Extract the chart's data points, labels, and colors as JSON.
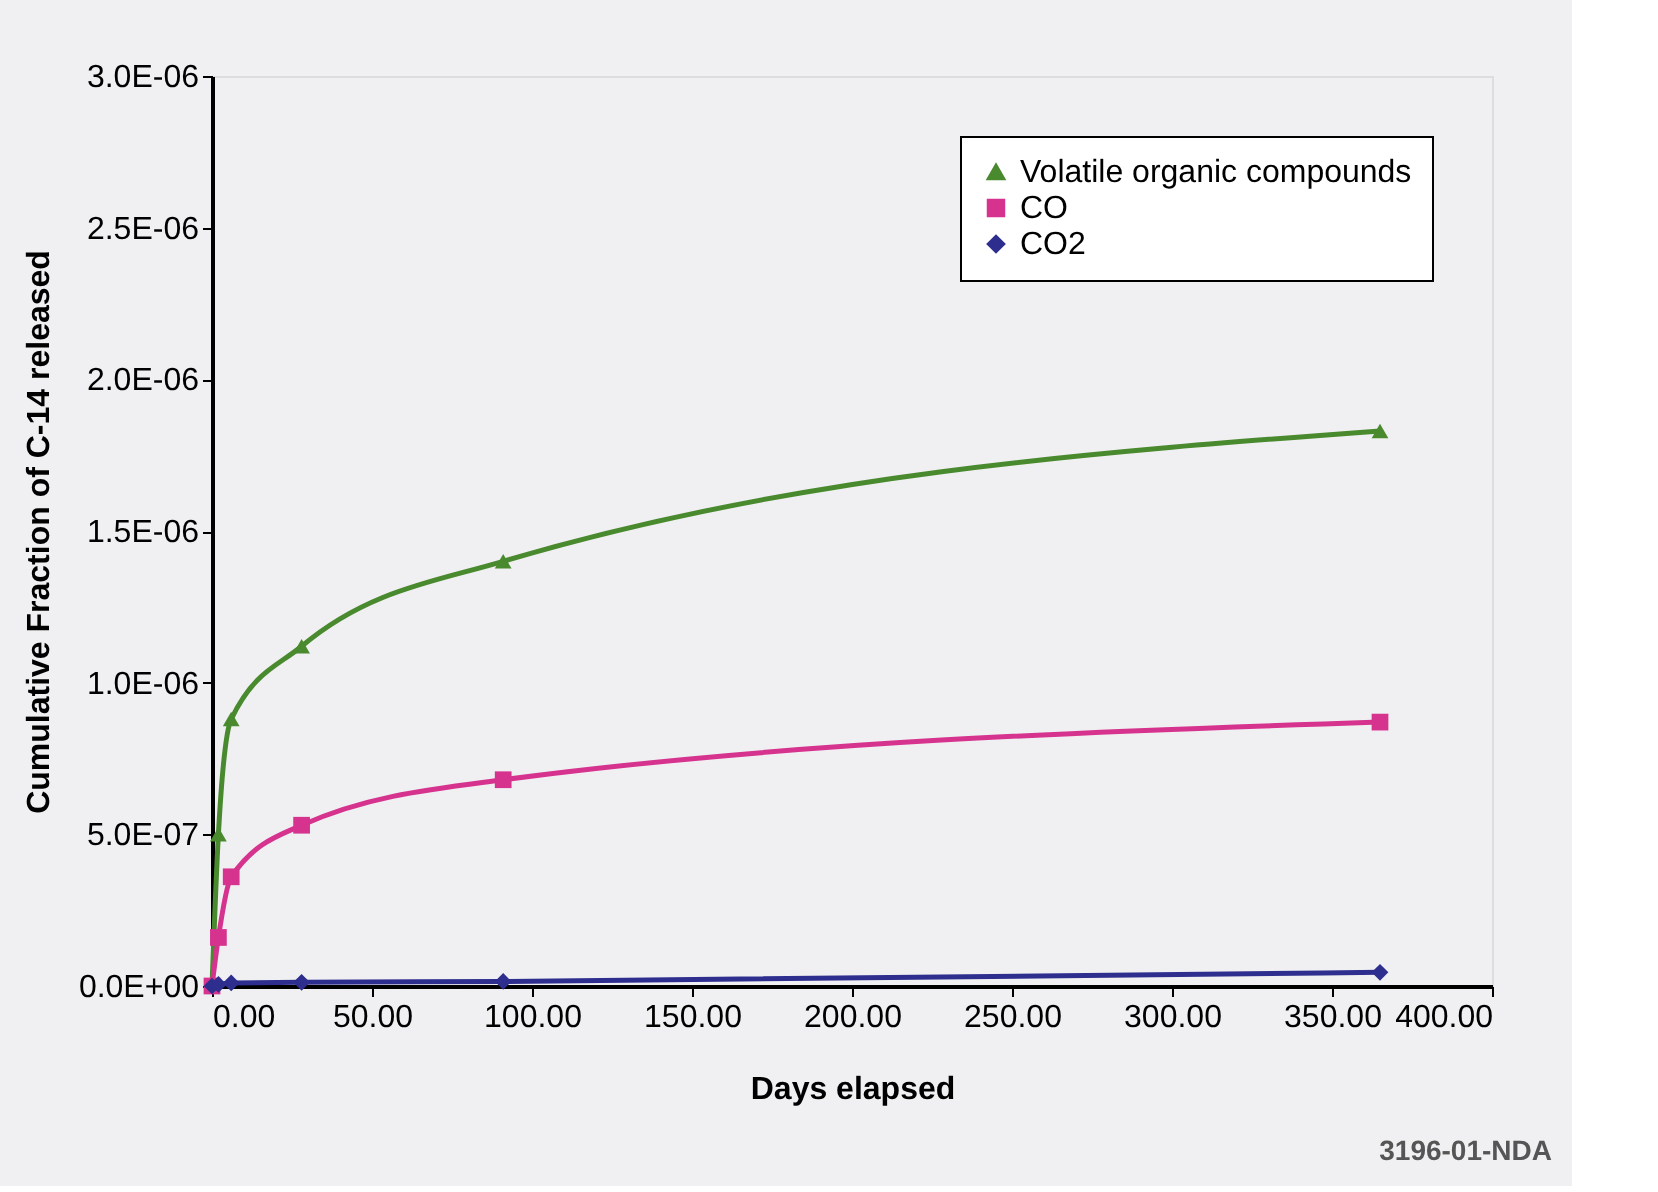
{
  "chart_data": {
    "type": "line",
    "xlabel": "Days elapsed",
    "ylabel": "Cumulative Fraction of C-14 released",
    "xlim": [
      0,
      400
    ],
    "xticks": [
      {
        "value": 0,
        "label": "0.00"
      },
      {
        "value": 50,
        "label": "50.00"
      },
      {
        "value": 100,
        "label": "100.00"
      },
      {
        "value": 150,
        "label": "150.00"
      },
      {
        "value": 200,
        "label": "200.00"
      },
      {
        "value": 250,
        "label": "250.00"
      },
      {
        "value": 300,
        "label": "300.00"
      },
      {
        "value": 350,
        "label": "350.00"
      },
      {
        "value": 400,
        "label": "400.00"
      }
    ],
    "ylim": [
      0,
      3e-06
    ],
    "yticks": [
      {
        "value": 0,
        "label": "0.0E+00"
      },
      {
        "value": 5e-07,
        "label": "5.0E-07"
      },
      {
        "value": 1e-06,
        "label": "1.0E-06"
      },
      {
        "value": 1.5e-06,
        "label": "1.5E-06"
      },
      {
        "value": 2e-06,
        "label": "2.0E-06"
      },
      {
        "value": 2.5e-06,
        "label": "2.5E-06"
      },
      {
        "value": 3e-06,
        "label": "3.0E-06"
      }
    ],
    "grid": false,
    "legend": "top right",
    "line_style": "solid",
    "x": [
      0,
      2,
      6,
      28,
      91,
      365
    ],
    "series": [
      {
        "name": "Volatile organic compounds",
        "color": "#4a8a2f",
        "marker": "triangle",
        "values": [
          0,
          5e-07,
          8.8e-07,
          1.12e-06,
          1.4e-06,
          1.83e-06
        ]
      },
      {
        "name": "CO",
        "color": "#d6338f",
        "marker": "square",
        "values": [
          0,
          1.6e-07,
          3.6e-07,
          5.3e-07,
          6.8e-07,
          8.7e-07
        ]
      },
      {
        "name": "CO2",
        "color": "#2e2e8f",
        "marker": "diamond",
        "values": [
          0,
          5e-09,
          1e-08,
          1.2e-08,
          1.5e-08,
          4.5e-08
        ]
      }
    ],
    "annotations": [
      "3196-01-NDA"
    ]
  }
}
